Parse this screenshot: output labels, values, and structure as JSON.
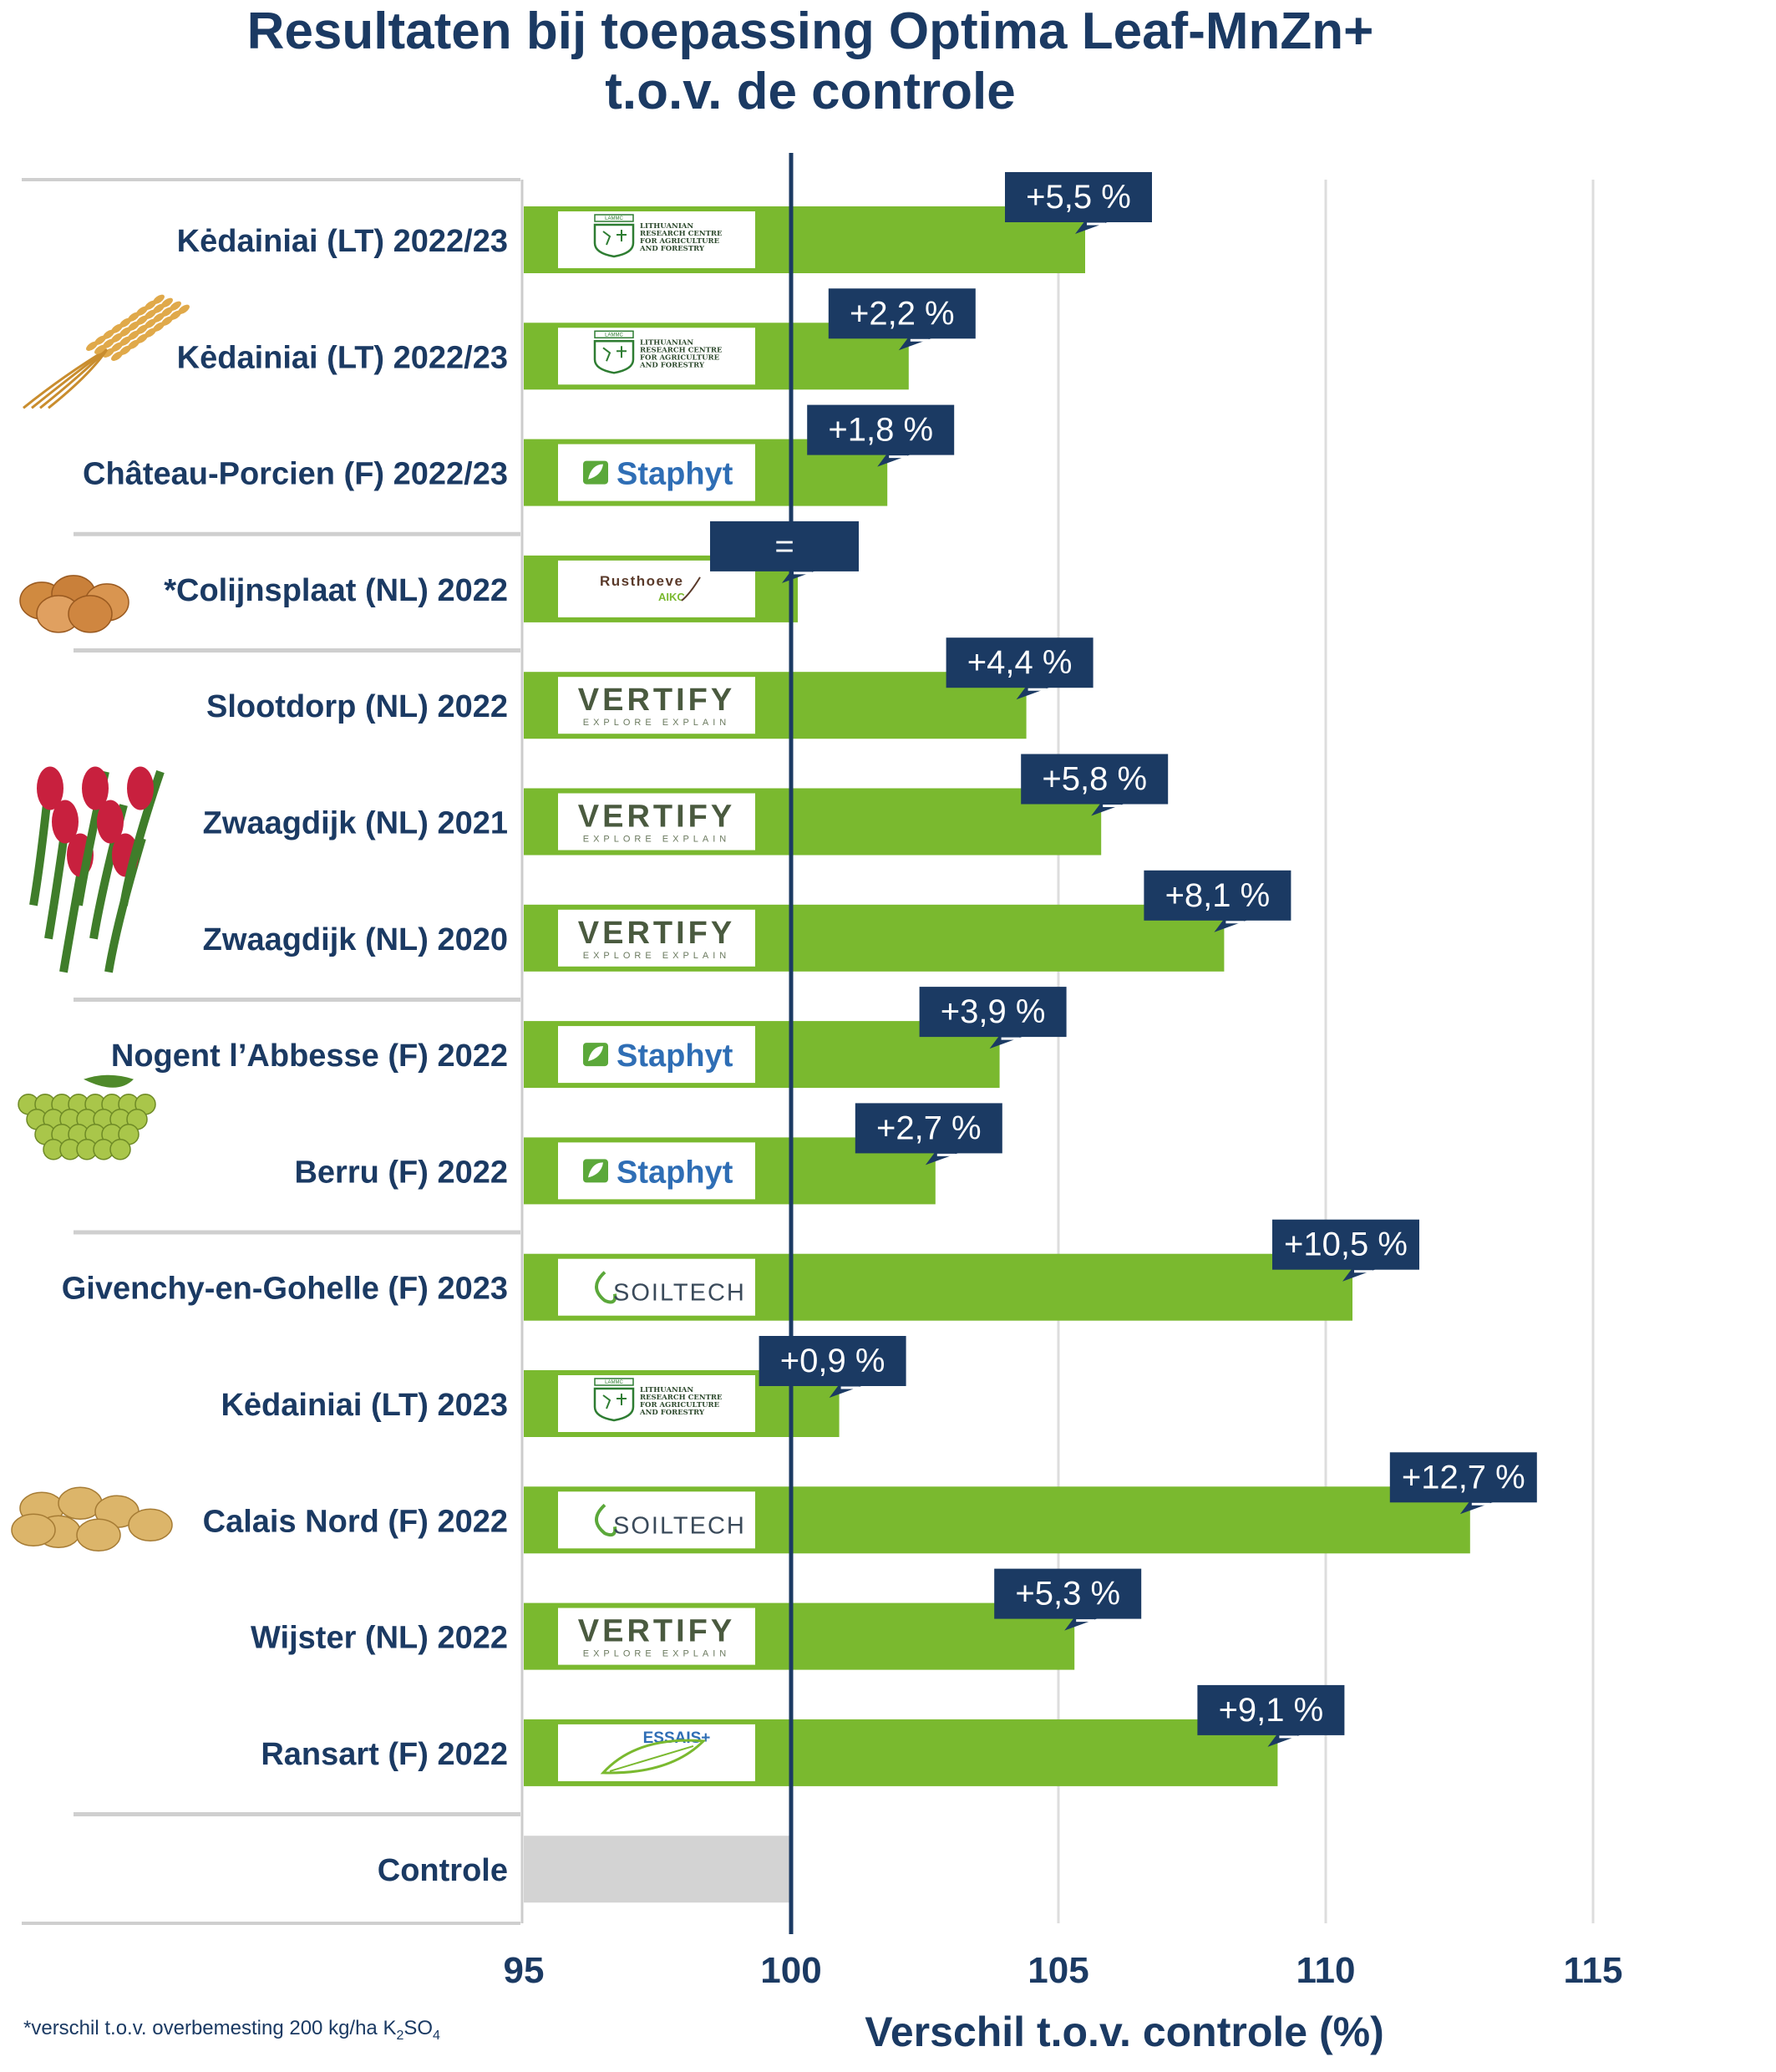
{
  "title_line1": "Resultaten bij toepassing Optima Leaf-MnZn+",
  "title_line2": "t.o.v. de controle",
  "footnote": {
    "text": "*verschil t.o.v. overbemesting 200  kg/ha K",
    "sub1": "2",
    "mid": "SO",
    "sub2": "4"
  },
  "colors": {
    "bar": "#7ab92f",
    "label_bg": "#1b3a63",
    "control": "#d3d3d3",
    "text": "#1b3a63",
    "grid": "#dddddd"
  },
  "chart_data": {
    "type": "bar",
    "orientation": "horizontal",
    "xlabel": "Verschil t.o.v. controle (%)",
    "xlim": [
      95,
      115
    ],
    "xticks": [
      95,
      100,
      105,
      110,
      115
    ],
    "baseline": 100,
    "categories": [
      "Kėdainiai (LT) 2022/23",
      "Kėdainiai (LT) 2022/23",
      "Château-Porcien (F) 2022/23",
      "*Colijnsplaat (NL) 2022",
      "Slootdorp (NL) 2022",
      "Zwaagdijk (NL) 2021",
      "Zwaagdijk (NL) 2020",
      "Nogent l’Abbesse (F) 2022",
      "Berru (F) 2022",
      "Givenchy-en-Gohelle (F) 2023",
      "Kėdainiai (LT) 2023",
      "Calais Nord (F) 2022",
      "Wijster (NL) 2022",
      "Ransart (F) 2022",
      "Controle"
    ],
    "values": [
      105.5,
      102.2,
      101.8,
      100,
      104.4,
      105.8,
      108.1,
      103.9,
      102.7,
      110.5,
      100.9,
      112.7,
      105.3,
      109.1,
      100
    ],
    "data_labels": [
      "+5,5 %",
      "+2,2 %",
      "+1,8 %",
      "=",
      "+4,4 %",
      "+5,8 %",
      "+8,1 %",
      "+3,9 %",
      "+2,7 %",
      "+10,5 %",
      "+0,9 %",
      "+12,7 %",
      "+5,3 %",
      "+9,1 %",
      ""
    ],
    "logos": [
      "LAMMC",
      "LAMMC",
      "Staphyt",
      "Rusthoeve",
      "VERTIFY",
      "VERTIFY",
      "VERTIFY",
      "Staphyt",
      "Staphyt",
      "SOILTECH",
      "LAMMC",
      "SOILTECH",
      "VERTIFY",
      "ESSAIS+",
      ""
    ],
    "crop_groups": [
      {
        "crop": "wheat",
        "rows": [
          0,
          1,
          2
        ]
      },
      {
        "crop": "onion",
        "rows": [
          3
        ]
      },
      {
        "crop": "tulip",
        "rows": [
          4,
          5,
          6
        ]
      },
      {
        "crop": "grape",
        "rows": [
          7,
          8
        ]
      },
      {
        "crop": "potato",
        "rows": [
          9,
          10,
          11,
          12,
          13
        ]
      }
    ]
  },
  "logo_text": {
    "lammc_badge": "LAMMC",
    "lammc_lines": [
      "LITHUANIAN",
      "RESEARCH CENTRE",
      "FOR AGRICULTURE",
      "AND FORESTRY"
    ],
    "staphyt": "Staphyt",
    "rusthoeve": "Rusthoeve",
    "rusthoeve_sub": "AIKC",
    "vertify": "VERTIFY",
    "vertify_sub": "EXPLORE EXPLAIN",
    "soiltech": "SOILTECH",
    "essais": "ESSAIS+"
  }
}
